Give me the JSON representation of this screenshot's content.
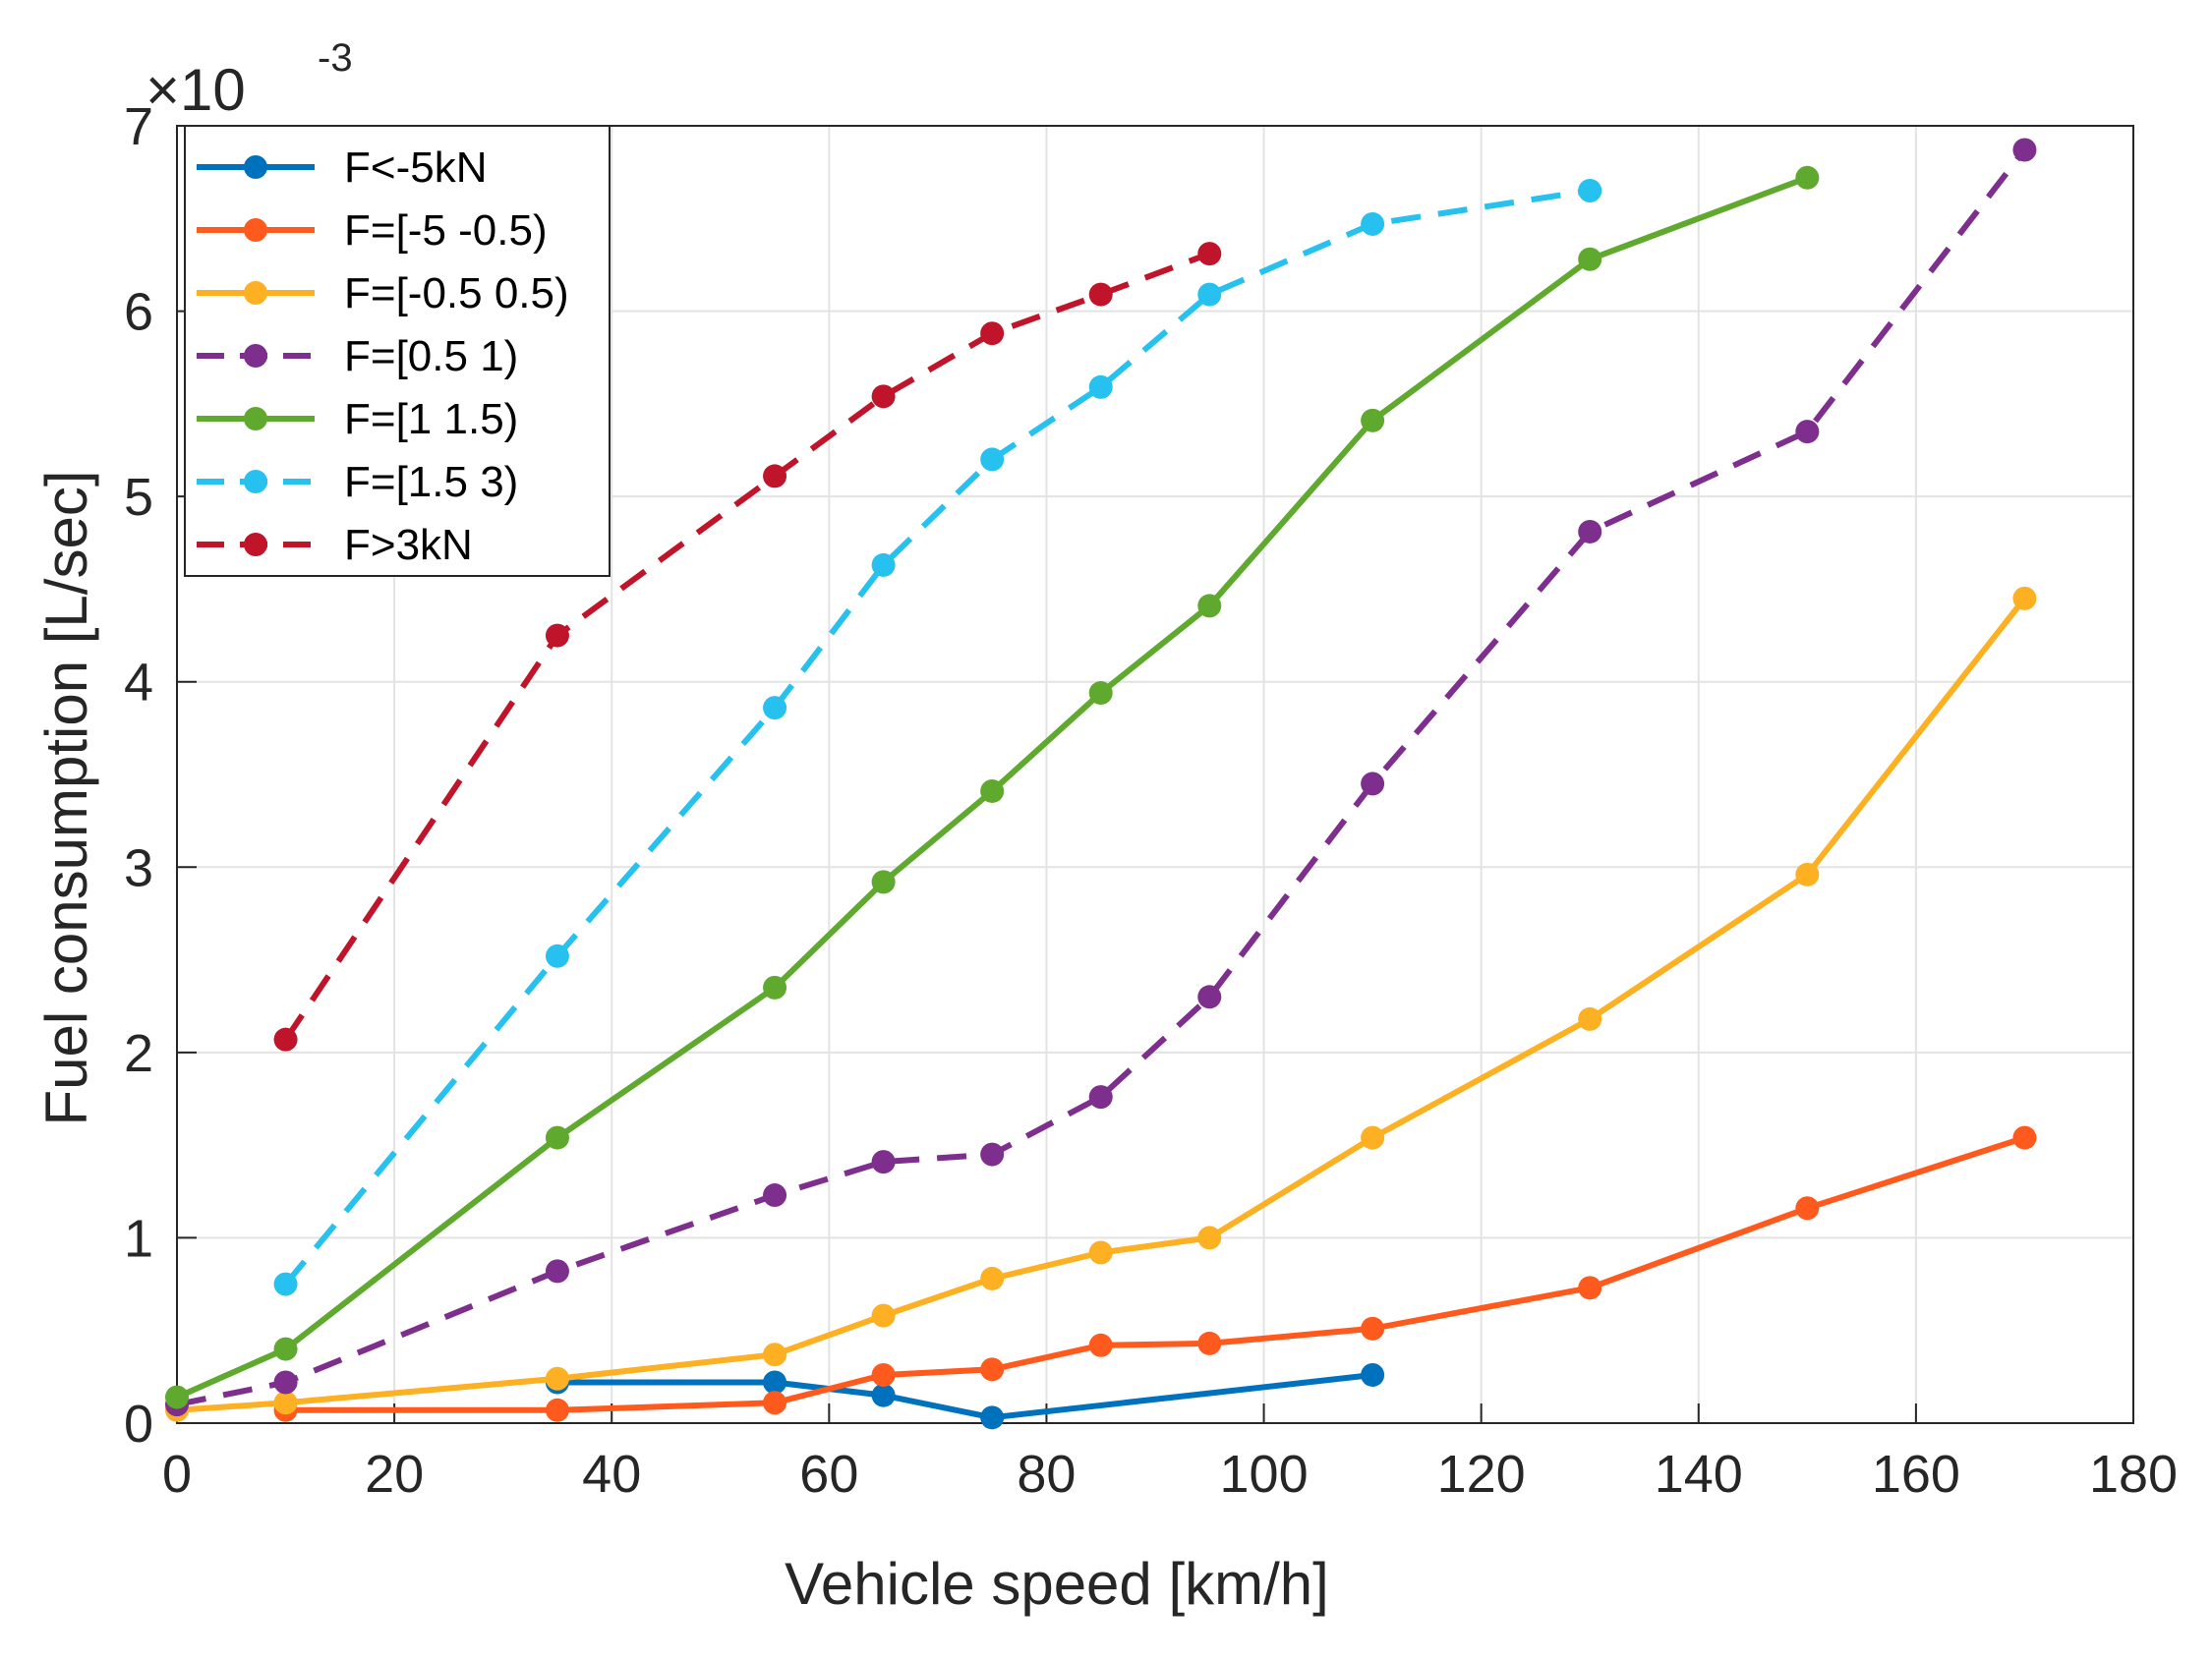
{
  "chart_data": {
    "type": "line",
    "title": "",
    "xlabel": "Vehicle speed [km/h]",
    "ylabel": "Fuel consumption [L/sec]",
    "exponent_label": {
      "prefix": "×10",
      "exponent": "-3"
    },
    "xlim": [
      0,
      180
    ],
    "ylim": [
      0,
      7
    ],
    "xticks": [
      0,
      20,
      40,
      60,
      80,
      100,
      120,
      140,
      160,
      180
    ],
    "yticks": [
      0,
      1,
      2,
      3,
      4,
      5,
      6,
      7
    ],
    "grid": true,
    "legend_position": "top-left",
    "series": [
      {
        "name": "F<-5kN",
        "color": "#0072BD",
        "dash": "solid",
        "x": [
          35,
          55,
          65,
          75,
          110
        ],
        "y": [
          0.22,
          0.22,
          0.15,
          0.03,
          0.26
        ]
      },
      {
        "name": "F=[-5 -0.5)",
        "color": "#FF5A1E",
        "dash": "solid",
        "x": [
          10,
          35,
          55,
          65,
          75,
          85,
          95,
          110,
          130,
          150,
          170
        ],
        "y": [
          0.07,
          0.07,
          0.11,
          0.26,
          0.29,
          0.42,
          0.43,
          0.51,
          0.73,
          1.16,
          1.54
        ]
      },
      {
        "name": "F=[-0.5 0.5)",
        "color": "#FDB022",
        "dash": "solid",
        "x": [
          0,
          10,
          35,
          55,
          65,
          75,
          85,
          95,
          110,
          130,
          150,
          170
        ],
        "y": [
          0.07,
          0.11,
          0.24,
          0.37,
          0.58,
          0.78,
          0.92,
          1.0,
          1.54,
          2.18,
          2.96,
          4.45
        ]
      },
      {
        "name": "F=[0.5 1)",
        "color": "#7E2F8E",
        "dash": "dashed",
        "x": [
          0,
          10,
          35,
          55,
          65,
          75,
          85,
          95,
          110,
          130,
          150,
          170
        ],
        "y": [
          0.1,
          0.22,
          0.82,
          1.23,
          1.41,
          1.45,
          1.76,
          2.3,
          3.45,
          4.81,
          5.35,
          6.87
        ]
      },
      {
        "name": "F=[1 1.5)",
        "color": "#5FA92E",
        "dash": "solid",
        "x": [
          0,
          10,
          35,
          55,
          65,
          75,
          85,
          95,
          110,
          130,
          150
        ],
        "y": [
          0.14,
          0.4,
          1.54,
          2.35,
          2.92,
          3.41,
          3.94,
          4.41,
          5.41,
          6.28,
          6.72
        ]
      },
      {
        "name": "F=[1.5 3)",
        "color": "#27C1F0",
        "dash": "dashed",
        "x": [
          10,
          35,
          55,
          65,
          75,
          85,
          95,
          110,
          130
        ],
        "y": [
          0.75,
          2.52,
          3.86,
          4.63,
          5.2,
          5.59,
          6.09,
          6.47,
          6.65
        ]
      },
      {
        "name": "F>3kN",
        "color": "#C0142A",
        "dash": "dashed",
        "x": [
          10,
          35,
          55,
          65,
          75,
          85,
          95
        ],
        "y": [
          2.07,
          4.25,
          5.11,
          5.54,
          5.88,
          6.09,
          6.31
        ]
      }
    ]
  }
}
